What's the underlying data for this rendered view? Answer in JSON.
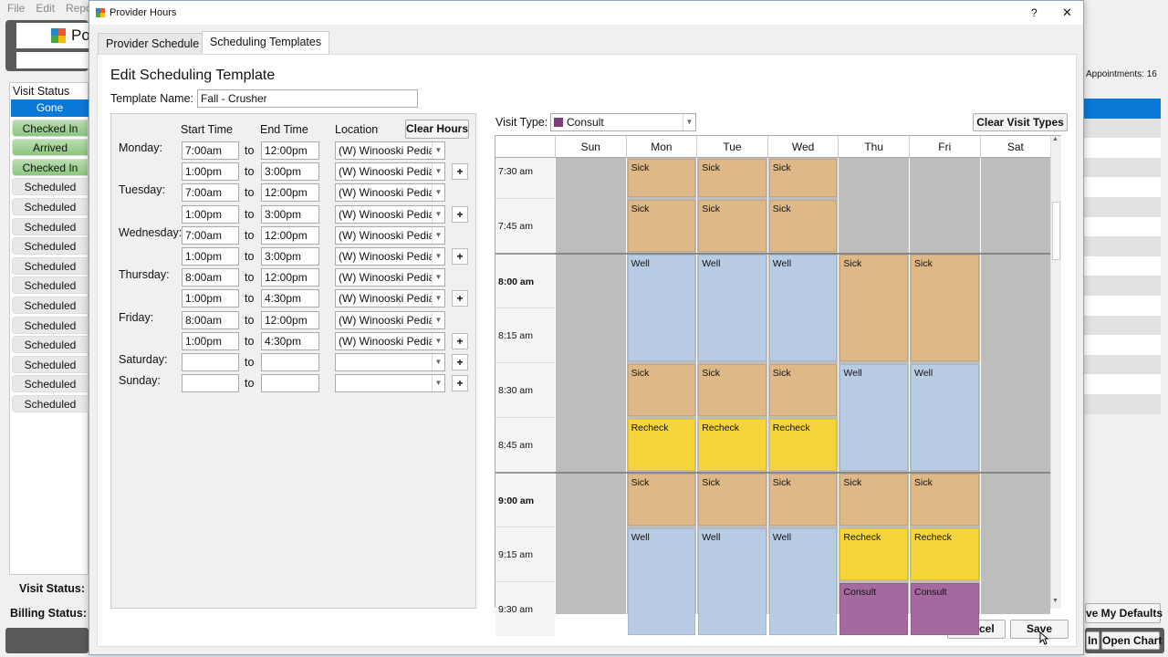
{
  "app": {
    "menu": [
      "File",
      "Edit",
      "Repo"
    ],
    "logo_text": "Po",
    "visit_status_header": "Visit Status",
    "visit_statuses": [
      "Gone",
      "Checked In",
      "Arrived",
      "Checked In",
      "Scheduled",
      "Scheduled",
      "Scheduled",
      "Scheduled",
      "Scheduled",
      "Scheduled",
      "Scheduled",
      "Scheduled",
      "Scheduled",
      "Scheduled",
      "Scheduled",
      "Scheduled"
    ],
    "visit_status_label": "Visit Status:",
    "billing_status_label": "Billing Status:",
    "appointments": "Appointments: 16",
    "save_defaults": "ve My Defaults",
    "checkin": "In",
    "open_chart": "Open Chart"
  },
  "dialog": {
    "title": "Provider Hours",
    "help": "?",
    "close": "✕",
    "tabs": [
      {
        "label": "Provider Schedule",
        "active": false
      },
      {
        "label": "Scheduling Templates",
        "active": true
      }
    ],
    "heading": "Edit Scheduling Template",
    "template_name_label": "Template Name:",
    "template_name": "Fall - Crusher",
    "col_start": "Start Time",
    "col_end": "End Time",
    "col_location": "Location",
    "clear_hours": "Clear Hours",
    "to": "to",
    "days": [
      {
        "label": "Monday:",
        "rows": [
          {
            "start": "7:00am",
            "end": "12:00pm",
            "loc": "(W) Winooski Pedia"
          },
          {
            "start": "1:00pm",
            "end": "3:00pm",
            "loc": "(W) Winooski Pedia"
          }
        ]
      },
      {
        "label": "Tuesday:",
        "rows": [
          {
            "start": "7:00am",
            "end": "12:00pm",
            "loc": "(W) Winooski Pedia"
          },
          {
            "start": "1:00pm",
            "end": "3:00pm",
            "loc": "(W) Winooski Pedia"
          }
        ]
      },
      {
        "label": "Wednesday:",
        "rows": [
          {
            "start": "7:00am",
            "end": "12:00pm",
            "loc": "(W) Winooski Pedia"
          },
          {
            "start": "1:00pm",
            "end": "3:00pm",
            "loc": "(W) Winooski Pedia"
          }
        ]
      },
      {
        "label": "Thursday:",
        "rows": [
          {
            "start": "8:00am",
            "end": "12:00pm",
            "loc": "(W) Winooski Pedia"
          },
          {
            "start": "1:00pm",
            "end": "4:30pm",
            "loc": "(W) Winooski Pedia"
          }
        ]
      },
      {
        "label": "Friday:",
        "rows": [
          {
            "start": "8:00am",
            "end": "12:00pm",
            "loc": "(W) Winooski Pedia"
          },
          {
            "start": "1:00pm",
            "end": "4:30pm",
            "loc": "(W) Winooski Pedia"
          }
        ]
      },
      {
        "label": "Saturday:",
        "rows": [
          {
            "start": "",
            "end": "",
            "loc": ""
          }
        ]
      },
      {
        "label": "Sunday:",
        "rows": [
          {
            "start": "",
            "end": "",
            "loc": ""
          }
        ]
      }
    ],
    "visit_type_label": "Visit Type:",
    "visit_type": "Consult",
    "visit_type_color": "#7b3f7a",
    "clear_visit_types": "Clear Visit Types",
    "cancel": "Cancel",
    "save": "Save"
  },
  "calendar": {
    "days": [
      "Sun",
      "Mon",
      "Tue",
      "Wed",
      "Thu",
      "Fri",
      "Sat"
    ],
    "times": [
      "7:30 am",
      "7:45 am",
      "8:00 am",
      "8:15 am",
      "8:30 am",
      "8:45 am",
      "9:00 am",
      "9:15 am",
      "9:30 am"
    ],
    "bold_times": [
      "8:00 am",
      "9:00 am"
    ],
    "colors": {
      "Sick": "#deb887",
      "Well": "#b8cce4",
      "Recheck": "#f5d53a",
      "Consult": "#a4699e",
      "Off": "#bdbdbd"
    },
    "blocks": [
      {
        "day": 1,
        "start": "7:30 am",
        "slots": 1,
        "type": "Sick"
      },
      {
        "day": 1,
        "start": "7:45 am",
        "slots": 1,
        "type": "Sick"
      },
      {
        "day": 1,
        "start": "8:00 am",
        "slots": 2,
        "type": "Well"
      },
      {
        "day": 1,
        "start": "8:30 am",
        "slots": 1,
        "type": "Sick"
      },
      {
        "day": 1,
        "start": "8:45 am",
        "slots": 1,
        "type": "Recheck"
      },
      {
        "day": 1,
        "start": "9:00 am",
        "slots": 1,
        "type": "Sick"
      },
      {
        "day": 1,
        "start": "9:15 am",
        "slots": 2,
        "type": "Well"
      },
      {
        "day": 2,
        "start": "7:30 am",
        "slots": 1,
        "type": "Sick"
      },
      {
        "day": 2,
        "start": "7:45 am",
        "slots": 1,
        "type": "Sick"
      },
      {
        "day": 2,
        "start": "8:00 am",
        "slots": 2,
        "type": "Well"
      },
      {
        "day": 2,
        "start": "8:30 am",
        "slots": 1,
        "type": "Sick"
      },
      {
        "day": 2,
        "start": "8:45 am",
        "slots": 1,
        "type": "Recheck"
      },
      {
        "day": 2,
        "start": "9:00 am",
        "slots": 1,
        "type": "Sick"
      },
      {
        "day": 2,
        "start": "9:15 am",
        "slots": 2,
        "type": "Well"
      },
      {
        "day": 3,
        "start": "7:30 am",
        "slots": 1,
        "type": "Sick"
      },
      {
        "day": 3,
        "start": "7:45 am",
        "slots": 1,
        "type": "Sick"
      },
      {
        "day": 3,
        "start": "8:00 am",
        "slots": 2,
        "type": "Well"
      },
      {
        "day": 3,
        "start": "8:30 am",
        "slots": 1,
        "type": "Sick"
      },
      {
        "day": 3,
        "start": "8:45 am",
        "slots": 1,
        "type": "Recheck"
      },
      {
        "day": 3,
        "start": "9:00 am",
        "slots": 1,
        "type": "Sick"
      },
      {
        "day": 3,
        "start": "9:15 am",
        "slots": 2,
        "type": "Well"
      },
      {
        "day": 4,
        "start": "8:00 am",
        "slots": 2,
        "type": "Sick"
      },
      {
        "day": 4,
        "start": "8:30 am",
        "slots": 2,
        "type": "Well"
      },
      {
        "day": 4,
        "start": "9:00 am",
        "slots": 1,
        "type": "Sick"
      },
      {
        "day": 4,
        "start": "9:15 am",
        "slots": 1,
        "type": "Recheck"
      },
      {
        "day": 4,
        "start": "9:30 am",
        "slots": 1,
        "type": "Consult"
      },
      {
        "day": 5,
        "start": "8:00 am",
        "slots": 2,
        "type": "Sick"
      },
      {
        "day": 5,
        "start": "8:30 am",
        "slots": 2,
        "type": "Well"
      },
      {
        "day": 5,
        "start": "9:00 am",
        "slots": 1,
        "type": "Sick"
      },
      {
        "day": 5,
        "start": "9:15 am",
        "slots": 1,
        "type": "Recheck"
      },
      {
        "day": 5,
        "start": "9:30 am",
        "slots": 1,
        "type": "Consult"
      }
    ]
  }
}
